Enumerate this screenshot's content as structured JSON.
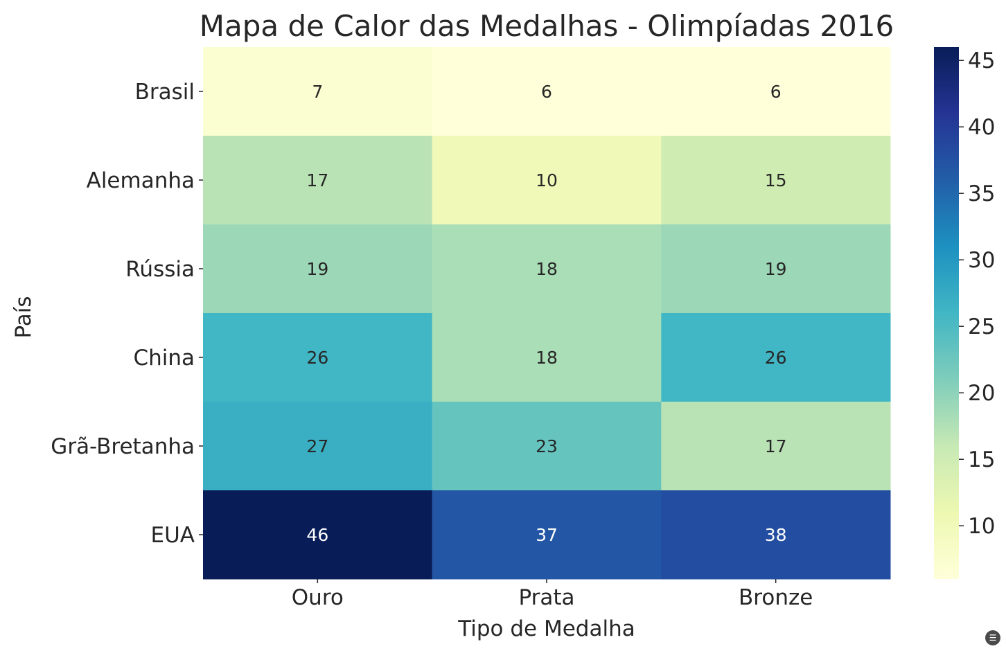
{
  "chart_data": {
    "type": "heatmap",
    "title": "Mapa de Calor das Medalhas - Olimpíadas 2016",
    "xlabel": "Tipo de Medalha",
    "ylabel": "País",
    "x_categories": [
      "Ouro",
      "Prata",
      "Bronze"
    ],
    "y_categories": [
      "Brasil",
      "Alemanha",
      "Rússia",
      "China",
      "Grã-Bretanha",
      "EUA"
    ],
    "values": [
      [
        7,
        6,
        6
      ],
      [
        17,
        10,
        15
      ],
      [
        19,
        18,
        19
      ],
      [
        26,
        18,
        26
      ],
      [
        27,
        23,
        17
      ],
      [
        46,
        37,
        38
      ]
    ],
    "colormap": "YlGnBu",
    "colorbar": {
      "min": 6,
      "max": 46,
      "ticks": [
        10,
        15,
        20,
        25,
        30,
        35,
        40,
        45
      ]
    },
    "annotations": true,
    "grid": false,
    "legend": "colorbar-right"
  }
}
